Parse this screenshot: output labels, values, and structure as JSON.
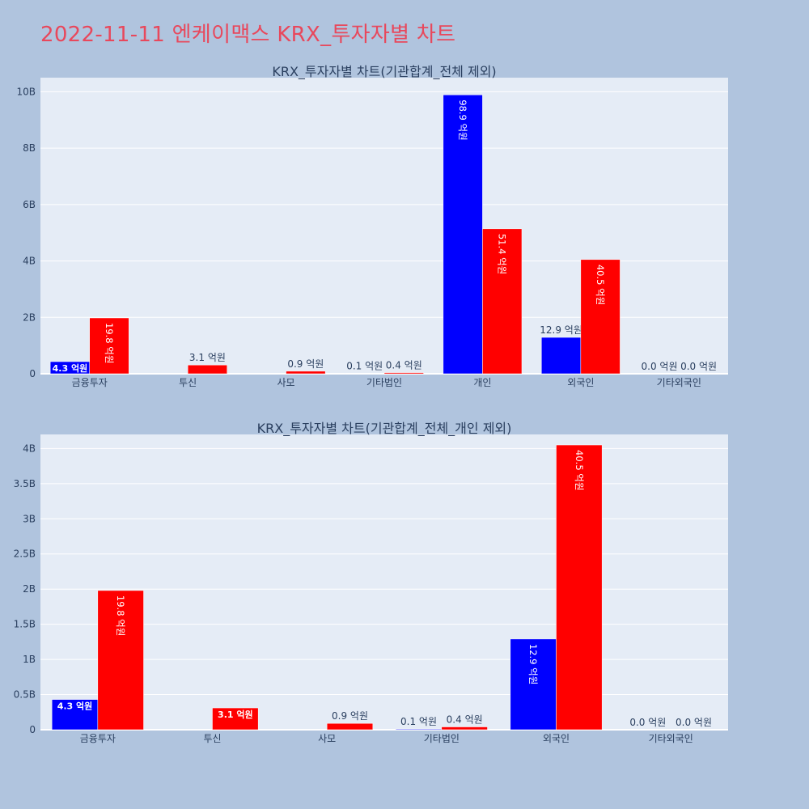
{
  "page": {
    "title": "2022-11-11 엔케이맥스 KRX_투자자별 차트"
  },
  "colors": {
    "buy": "#0000ff",
    "sell": "#ff0000",
    "plot_bg": "#e5ecf6",
    "paper_bg": "#b0c4de",
    "title": "#e8485c"
  },
  "chart_data": [
    {
      "type": "bar",
      "title": "KRX_투자자별 차트(기관합계_전체 제외)",
      "categories": [
        "금융투자",
        "투신",
        "사모",
        "기타법인",
        "개인",
        "외국인",
        "기타외국인"
      ],
      "series": [
        {
          "color": "#0000ff",
          "values": [
            430000000,
            0,
            0,
            10000000,
            9890000000,
            1290000000,
            0
          ],
          "labels": [
            "4.3 억원",
            "",
            "",
            "0.1 억원",
            "98.9 억원",
            "12.9 억원",
            "0.0 억원"
          ]
        },
        {
          "color": "#ff0000",
          "values": [
            1980000000,
            310000000,
            90000000,
            40000000,
            5140000000,
            4050000000,
            0
          ],
          "labels": [
            "19.8 억원",
            "3.1 억원",
            "0.9 억원",
            "0.4 억원",
            "51.4 억원",
            "40.5 억원",
            "0.0 억원"
          ]
        }
      ],
      "ylim": [
        0,
        10500000000
      ],
      "yticks": [
        0,
        2000000000,
        4000000000,
        6000000000,
        8000000000,
        10000000000
      ],
      "ytick_labels": [
        "0",
        "2B",
        "4B",
        "6B",
        "8B",
        "10B"
      ],
      "grid": true
    },
    {
      "type": "bar",
      "title": "KRX_투자자별 차트(기관합계_전체_개인 제외)",
      "categories": [
        "금융투자",
        "투신",
        "사모",
        "기타법인",
        "외국인",
        "기타외국인"
      ],
      "series": [
        {
          "color": "#0000ff",
          "values": [
            430000000,
            0,
            0,
            10000000,
            1290000000,
            0
          ],
          "labels": [
            "4.3 억원",
            "",
            "",
            "0.1 억원",
            "12.9 억원",
            "0.0 억원"
          ]
        },
        {
          "color": "#ff0000",
          "values": [
            1980000000,
            310000000,
            90000000,
            40000000,
            4050000000,
            0
          ],
          "labels": [
            "19.8 억원",
            "3.1 억원",
            "0.9 억원",
            "0.4 억원",
            "40.5 억원",
            "0.0 억원"
          ]
        }
      ],
      "ylim": [
        0,
        4200000000
      ],
      "yticks": [
        0,
        500000000,
        1000000000,
        1500000000,
        2000000000,
        2500000000,
        3000000000,
        3500000000,
        4000000000
      ],
      "ytick_labels": [
        "0",
        "0.5B",
        "1B",
        "1.5B",
        "2B",
        "2.5B",
        "3B",
        "3.5B",
        "4B"
      ],
      "grid": true
    }
  ]
}
